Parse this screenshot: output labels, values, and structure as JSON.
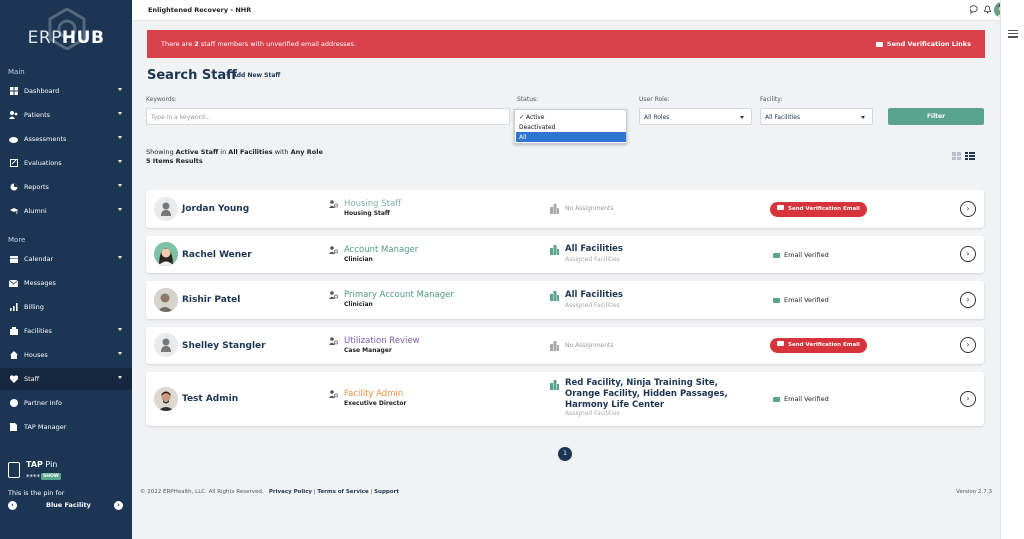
{
  "sidebar": {
    "logo_text_a": "ERP",
    "logo_text_b": "HUB",
    "main_label": "Main",
    "more_label": "More",
    "items": [
      {
        "label": "Dashboard",
        "icon": "dashboard-icon"
      },
      {
        "label": "Patients",
        "icon": "patients-icon"
      },
      {
        "label": "Assessments",
        "icon": "assessments-icon"
      },
      {
        "label": "Evaluations",
        "icon": "evaluations-icon"
      },
      {
        "label": "Reports",
        "icon": "reports-icon"
      },
      {
        "label": "Alumni",
        "icon": "alumni-icon"
      },
      {
        "label": "Calendar",
        "icon": "calendar-icon"
      },
      {
        "label": "Messages",
        "icon": "messages-icon"
      },
      {
        "label": "Billing",
        "icon": "billing-icon"
      },
      {
        "label": "Facilities",
        "icon": "facilities-icon"
      },
      {
        "label": "Houses",
        "icon": "houses-icon"
      },
      {
        "label": "Staff",
        "icon": "staff-icon"
      },
      {
        "label": "Partner Info",
        "icon": "partner-info-icon"
      },
      {
        "label": "TAP Manager",
        "icon": "tap-manager-icon"
      }
    ],
    "tap": {
      "title": "TAP",
      "title_suffix": " Pin",
      "pin": "****",
      "show": "SHOW",
      "desc": "This is the pin for",
      "facility": "Blue Facility"
    }
  },
  "topbar": {
    "title": "Enlightened Recovery - NHR"
  },
  "alert": {
    "pre": "There are ",
    "count": "2",
    "post": " staff members with unverified email addresses.",
    "button": "Send Verification Links"
  },
  "search": {
    "title": "Search Staff",
    "add_link": "+ Add New Staff",
    "keywords_label": "Keywords:",
    "keywords_placeholder": "Type in a keyword...",
    "status_label": "Status:",
    "status_options": [
      "✓ Active",
      "Deactivated",
      "All"
    ],
    "role_label": "User Role:",
    "role_value": "All Roles",
    "facility_label": "Facility:",
    "facility_value": "All Facilities",
    "filter_button": "Filter",
    "showing_pre": "Showing ",
    "showing_status": "Active Staff",
    "showing_mid": " in ",
    "showing_fac": "All Facilities",
    "showing_mid2": " with ",
    "showing_role": "Any Role",
    "count_text": "5 Items Results"
  },
  "colors": {
    "sidebar": "#1c3553",
    "accent": "#5aa48e",
    "alert": "#d9414b",
    "verify_button": "#d6343a"
  },
  "staff": [
    {
      "name": "Jordan Young",
      "role": "Housing Staff",
      "role_color": "#7bb4a7",
      "subrole": "Housing Staff",
      "facility": "",
      "facility_sub": "",
      "no_assign": "No Assignments",
      "verified": false,
      "verify_label": "Send Verification Email",
      "avatar": "placeholder"
    },
    {
      "name": "Rachel Wener",
      "role": "Account Manager",
      "role_color": "#4f9a83",
      "subrole": "Clinician",
      "facility": "All Facilities",
      "facility_sub": "Assigned Facilities",
      "no_assign": "",
      "verified": true,
      "verified_label": "Email Verified",
      "avatar": "photo"
    },
    {
      "name": "Rishir Patel",
      "role": "Primary Account Manager",
      "role_color": "#4f9a83",
      "subrole": "Clinician",
      "facility": "All Facilities",
      "facility_sub": "Assigned Facilities",
      "no_assign": "",
      "verified": true,
      "verified_label": "Email Verified",
      "avatar": "photo"
    },
    {
      "name": "Shelley Stangler",
      "role": "Utilization Review",
      "role_color": "#7a5bb5",
      "subrole": "Case Manager",
      "facility": "",
      "facility_sub": "",
      "no_assign": "No Assignments",
      "verified": false,
      "verify_label": "Send Verification Email",
      "avatar": "placeholder"
    },
    {
      "name": "Test Admin",
      "role": "Facility Admin",
      "role_color": "#f08c3c",
      "subrole": "Executive Director",
      "facility": "Red Facility, Ninja Training Site, Orange Facility, Hidden Passages, Harmony Life Center",
      "facility_sub": "Assigned Facilities",
      "no_assign": "",
      "verified": true,
      "verified_label": "Email Verified",
      "avatar": "photo"
    }
  ],
  "pager": {
    "current": "1"
  },
  "footer": {
    "copyright": "© 2022 ERPHealth, LLC. All Rights Reserved.",
    "privacy": "Privacy Policy",
    "terms": "Terms of Service",
    "support": "Support",
    "sep": " | ",
    "version": "Version 2.7.3"
  }
}
